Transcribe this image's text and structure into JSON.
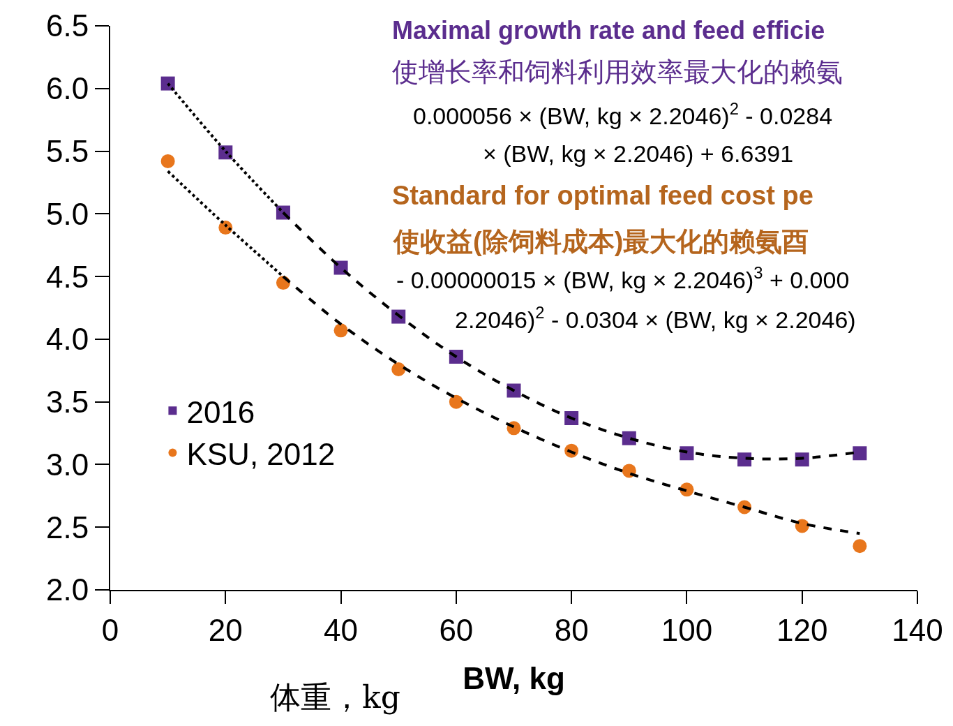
{
  "chart_data": {
    "type": "scatter",
    "xlabel": "BW, kg",
    "x": [
      10,
      20,
      30,
      40,
      50,
      60,
      70,
      80,
      90,
      100,
      110,
      120,
      130
    ],
    "series": [
      {
        "name": "2016",
        "color": "#5b2d8e",
        "marker": "square",
        "values": [
          6.04,
          5.49,
          5.01,
          4.57,
          4.18,
          3.86,
          3.59,
          3.37,
          3.21,
          3.09,
          3.04,
          3.04,
          3.09
        ]
      },
      {
        "name": "KSU, 2012",
        "color": "#e8761c",
        "marker": "circle",
        "values": [
          5.42,
          4.89,
          4.45,
          4.07,
          3.76,
          3.5,
          3.29,
          3.11,
          2.95,
          2.8,
          2.66,
          2.51,
          2.35
        ]
      },
      {
        "type": "line",
        "color": "#000000",
        "line_style": "dotted",
        "x": [
          10,
          20,
          30
        ],
        "values": [
          6.04,
          5.5,
          5.01
        ]
      },
      {
        "type": "line",
        "color": "#000000",
        "line_style": "dashed",
        "x": [
          30,
          40,
          50,
          60,
          70,
          80,
          90,
          100,
          110,
          120,
          130
        ],
        "values": [
          5.01,
          4.57,
          4.19,
          3.86,
          3.59,
          3.37,
          3.21,
          3.1,
          3.05,
          3.05,
          3.1
        ]
      },
      {
        "type": "line",
        "color": "#000000",
        "line_style": "dotted",
        "x": [
          10,
          20,
          30
        ],
        "values": [
          5.34,
          4.91,
          4.5
        ]
      },
      {
        "type": "line",
        "color": "#000000",
        "line_style": "dashed",
        "x": [
          30,
          40,
          50,
          60,
          70,
          80,
          90,
          100,
          110,
          120,
          130
        ],
        "values": [
          4.5,
          4.12,
          3.8,
          3.53,
          3.3,
          3.1,
          2.93,
          2.79,
          2.66,
          2.53,
          2.45
        ]
      }
    ],
    "xlim": [
      0,
      140
    ],
    "xticks": [
      0,
      20,
      40,
      60,
      80,
      100,
      120,
      140
    ],
    "ylim": [
      2.0,
      6.5
    ],
    "yticks": [
      {
        "value": 2,
        "label": "2.0"
      },
      {
        "value": 2.5,
        "label": "2.5"
      },
      {
        "value": 3,
        "label": "3.0"
      },
      {
        "value": 3.5,
        "label": "3.5"
      },
      {
        "value": 4,
        "label": "4.0"
      },
      {
        "value": 4.5,
        "label": "4.5"
      },
      {
        "value": 5,
        "label": "5.0"
      },
      {
        "value": 5.5,
        "label": "5.5"
      },
      {
        "value": 6,
        "label": "6.0"
      },
      {
        "value": 6.5,
        "label": "6.5"
      }
    ],
    "legend": "left",
    "annotations": [
      "Maximal growth rate and feed efficie",
      "使增长率和饲料利用效率最大化的赖氨",
      "0.000056 × (BW, kg × 2.2046)$^{2}$ - 0.0284",
      "× (BW, kg × 2.2046) + 6.6391",
      "Standard for optimal feed cost pe",
      "使收益(除饲料成本)最大化的赖氨酉",
      "- 0.00000015 × (BW, kg × 2.2046)$^{3}$ + 0.000",
      "2.2046)$^{2}$ - 0.0304 × (BW, kg × 2.2046)",
      "体重，kg"
    ]
  }
}
